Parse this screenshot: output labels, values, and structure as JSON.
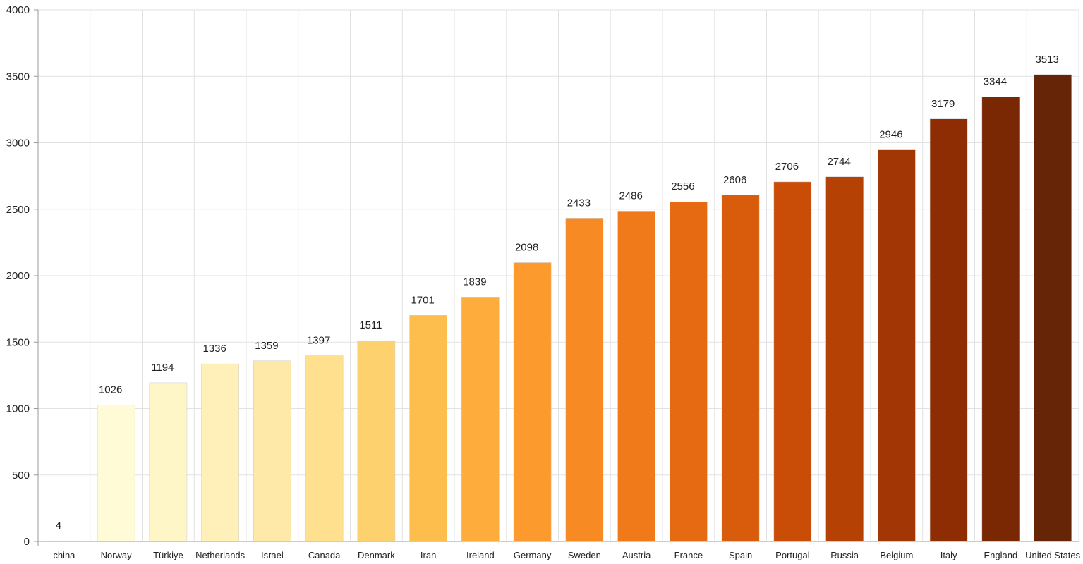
{
  "chart_data": {
    "type": "bar",
    "categories": [
      "china",
      "Norway",
      "Türkiye",
      "Netherlands",
      "Israel",
      "Canada",
      "Denmark",
      "Iran",
      "Ireland",
      "Germany",
      "Sweden",
      "Austria",
      "France",
      "Spain",
      "Portugal",
      "Russia",
      "Belgium",
      "Italy",
      "England",
      "United States"
    ],
    "values": [
      4,
      1026,
      1194,
      1336,
      1359,
      1397,
      1511,
      1701,
      1839,
      2098,
      2433,
      2486,
      2556,
      2606,
      2706,
      2744,
      2946,
      3179,
      3344,
      3513
    ],
    "colors": [
      "#ffffe5",
      "#fffbd7",
      "#fff6c8",
      "#fff0b9",
      "#fee9a9",
      "#fee08f",
      "#fed16f",
      "#febe4e",
      "#feac3b",
      "#fd9a2d",
      "#f88a24",
      "#f07a1a",
      "#e66a12",
      "#d95c0c",
      "#c94d07",
      "#b64105",
      "#a23604",
      "#8e2d04",
      "#7a2704",
      "#662506"
    ],
    "title": "",
    "xlabel": "",
    "ylabel": "",
    "ylim": [
      0,
      4000
    ],
    "yticks": [
      0,
      500,
      1000,
      1500,
      2000,
      2500,
      3000,
      3500,
      4000
    ],
    "grid": true,
    "legend": "none"
  }
}
